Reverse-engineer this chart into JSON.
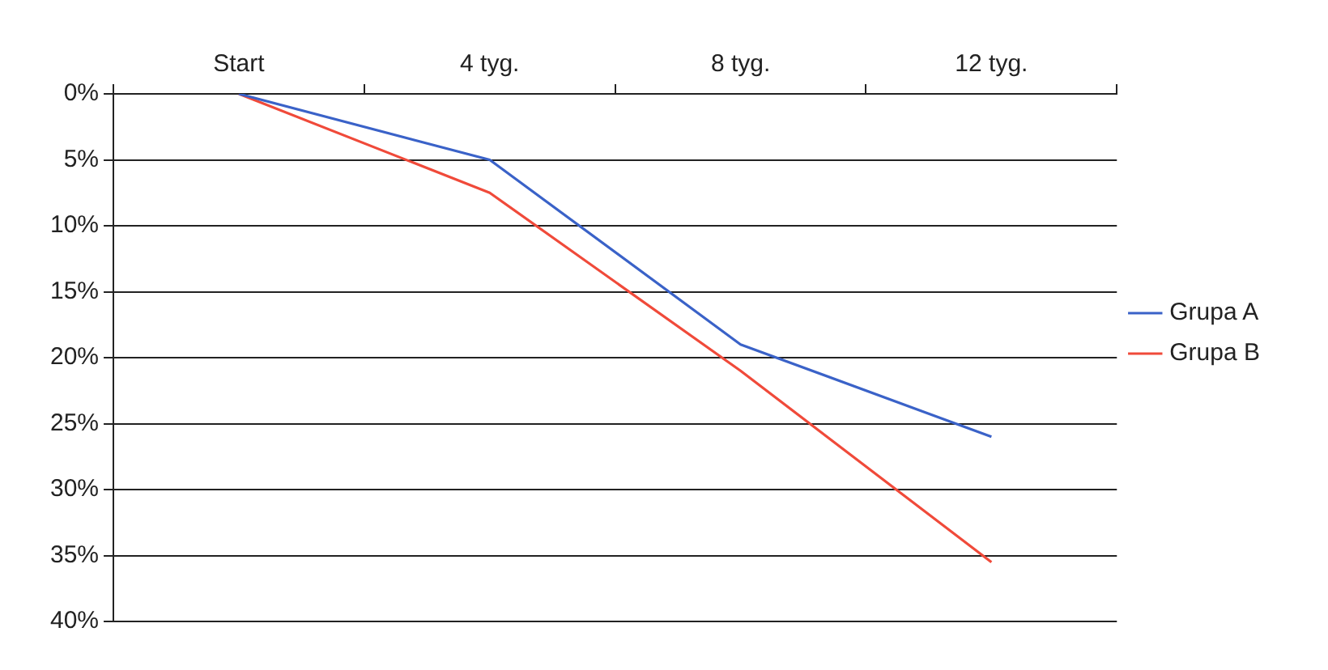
{
  "chart_data": {
    "type": "line",
    "categories": [
      "Start",
      "4 tyg.",
      "8 tyg.",
      "12 tyg."
    ],
    "series": [
      {
        "name": "Grupa A",
        "color": "#3a62c8",
        "values": [
          0,
          5,
          19,
          26
        ]
      },
      {
        "name": "Grupa B",
        "color": "#f04a3a",
        "values": [
          0,
          7.5,
          21,
          35.5
        ]
      }
    ],
    "ylim": [
      40,
      0
    ],
    "yticks": [
      {
        "value": 0,
        "label": "0%"
      },
      {
        "value": 5,
        "label": "5%"
      },
      {
        "value": 10,
        "label": "10%"
      },
      {
        "value": 15,
        "label": "15%"
      },
      {
        "value": 20,
        "label": "20%"
      },
      {
        "value": 25,
        "label": "25%"
      },
      {
        "value": 30,
        "label": "30%"
      },
      {
        "value": 35,
        "label": "35%"
      },
      {
        "value": 40,
        "label": "40%"
      }
    ],
    "grid": "y",
    "legend": "right",
    "marker": "none",
    "line_style": "solid"
  }
}
